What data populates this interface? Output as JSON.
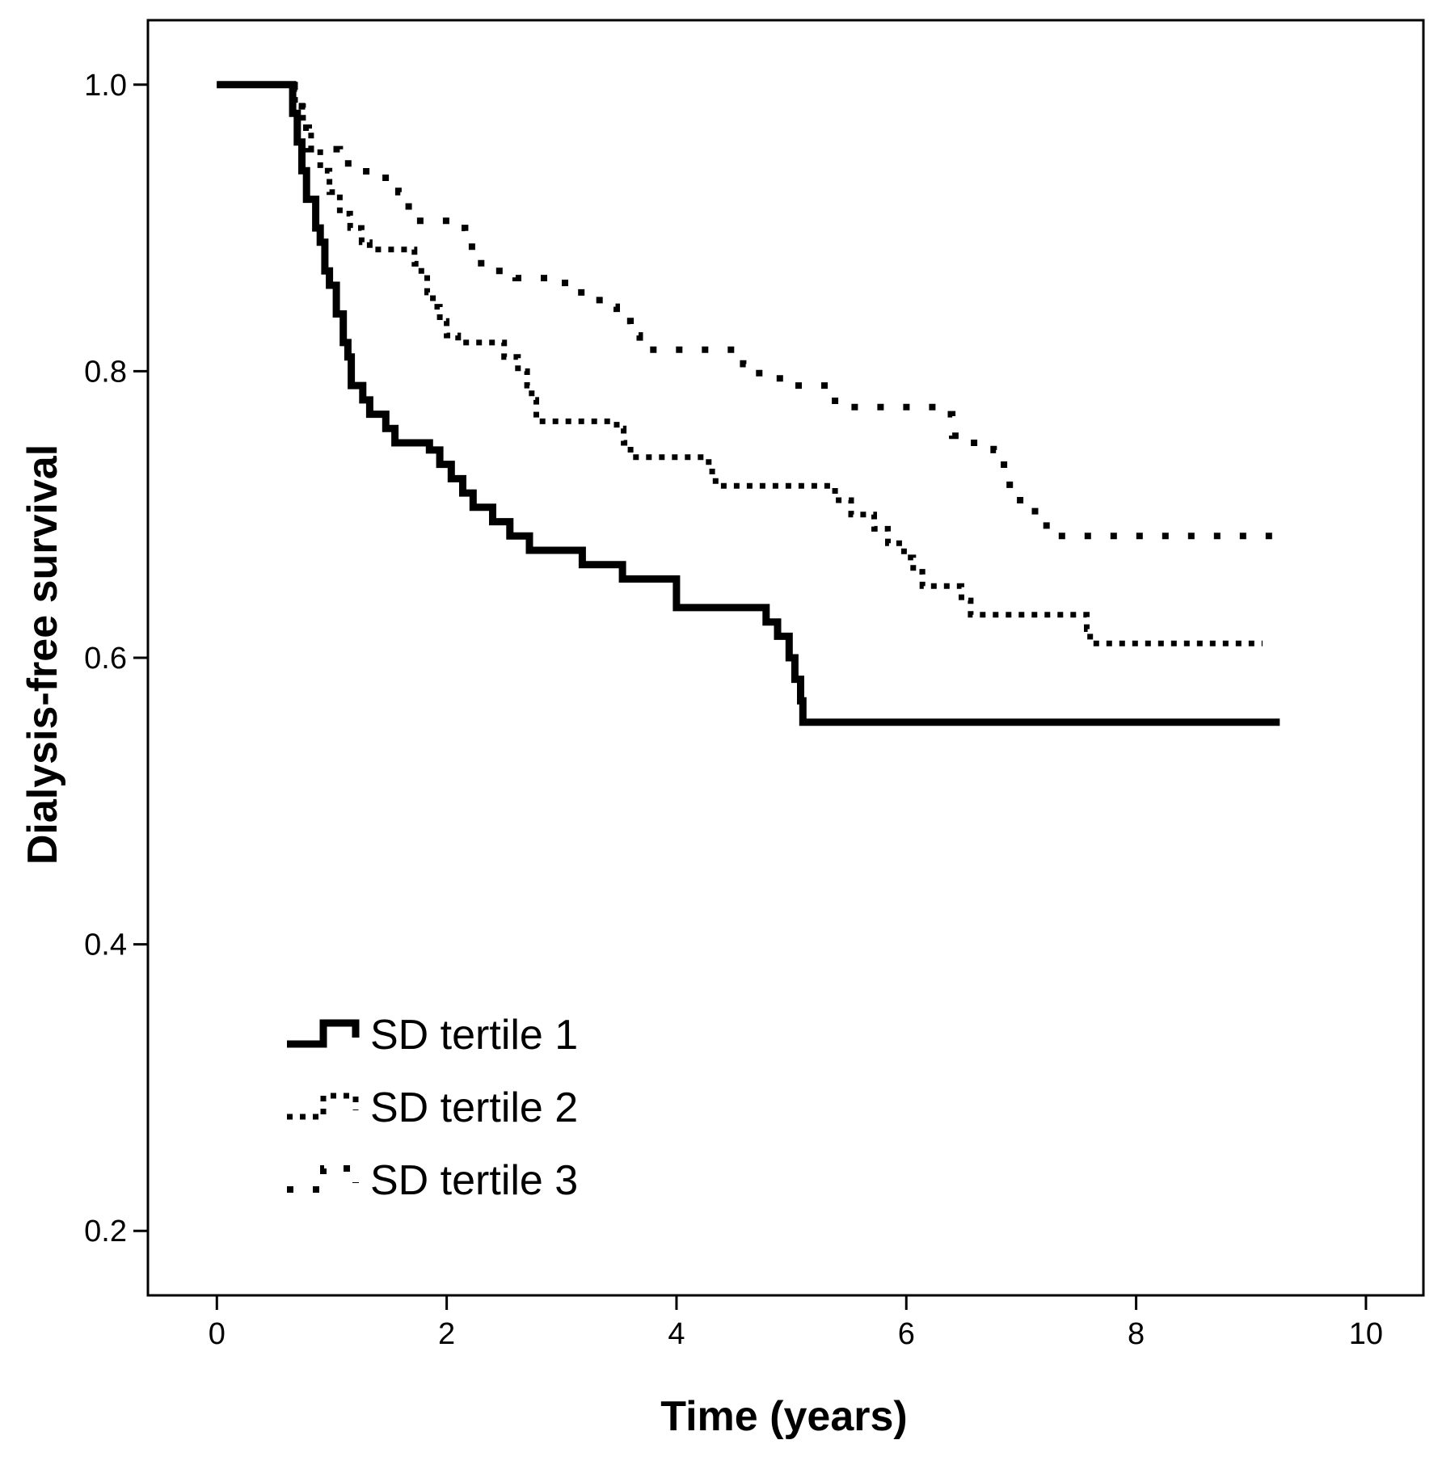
{
  "chart_data": {
    "type": "line",
    "subtype": "kaplan-meier-step",
    "title": "",
    "xlabel": "Time (years)",
    "ylabel": "Dialysis-free survival",
    "xlim": [
      -0.6,
      10.5
    ],
    "ylim": [
      0.155,
      1.045
    ],
    "x_ticks": [
      0,
      2,
      4,
      6,
      8,
      10
    ],
    "y_ticks": [
      0.2,
      0.4,
      0.6,
      0.8,
      1.0
    ],
    "x_tick_labels": [
      "0",
      "2",
      "4",
      "6",
      "8",
      "10"
    ],
    "y_tick_labels": [
      "0.2",
      "0.4",
      "0.6",
      "0.8",
      "1.0"
    ],
    "grid": false,
    "legend_position": "bottom-left",
    "series": [
      {
        "name": "SD tertile 1",
        "style": "solid",
        "points": [
          [
            0,
            1.0
          ],
          [
            0.6,
            1.0
          ],
          [
            0.66,
            0.98
          ],
          [
            0.7,
            0.96
          ],
          [
            0.74,
            0.94
          ],
          [
            0.78,
            0.92
          ],
          [
            0.86,
            0.9
          ],
          [
            0.9,
            0.89
          ],
          [
            0.94,
            0.87
          ],
          [
            0.98,
            0.86
          ],
          [
            1.04,
            0.84
          ],
          [
            1.1,
            0.82
          ],
          [
            1.14,
            0.81
          ],
          [
            1.17,
            0.79
          ],
          [
            1.27,
            0.78
          ],
          [
            1.33,
            0.77
          ],
          [
            1.47,
            0.76
          ],
          [
            1.55,
            0.75
          ],
          [
            1.85,
            0.745
          ],
          [
            1.94,
            0.735
          ],
          [
            2.04,
            0.725
          ],
          [
            2.14,
            0.715
          ],
          [
            2.23,
            0.705
          ],
          [
            2.4,
            0.695
          ],
          [
            2.55,
            0.685
          ],
          [
            2.72,
            0.675
          ],
          [
            3.18,
            0.665
          ],
          [
            3.53,
            0.655
          ],
          [
            4.0,
            0.645
          ],
          [
            4.0,
            0.635
          ],
          [
            4.78,
            0.625
          ],
          [
            4.88,
            0.615
          ],
          [
            4.98,
            0.6
          ],
          [
            5.03,
            0.585
          ],
          [
            5.08,
            0.57
          ],
          [
            5.1,
            0.555
          ],
          [
            9.25,
            0.555
          ]
        ]
      },
      {
        "name": "SD tertile 2",
        "style": "dotted",
        "points": [
          [
            0,
            1.0
          ],
          [
            0.6,
            1.0
          ],
          [
            0.68,
            0.985
          ],
          [
            0.75,
            0.97
          ],
          [
            0.82,
            0.955
          ],
          [
            0.9,
            0.94
          ],
          [
            0.98,
            0.925
          ],
          [
            1.07,
            0.91
          ],
          [
            1.16,
            0.9
          ],
          [
            1.26,
            0.89
          ],
          [
            1.33,
            0.885
          ],
          [
            1.72,
            0.875
          ],
          [
            1.78,
            0.865
          ],
          [
            1.83,
            0.855
          ],
          [
            1.88,
            0.845
          ],
          [
            1.94,
            0.835
          ],
          [
            2.0,
            0.825
          ],
          [
            2.1,
            0.82
          ],
          [
            2.5,
            0.81
          ],
          [
            2.62,
            0.8
          ],
          [
            2.7,
            0.79
          ],
          [
            2.74,
            0.78
          ],
          [
            2.78,
            0.765
          ],
          [
            3.48,
            0.76
          ],
          [
            3.54,
            0.75
          ],
          [
            3.6,
            0.74
          ],
          [
            4.28,
            0.73
          ],
          [
            4.34,
            0.72
          ],
          [
            5.38,
            0.71
          ],
          [
            5.52,
            0.7
          ],
          [
            5.72,
            0.69
          ],
          [
            5.84,
            0.68
          ],
          [
            5.98,
            0.67
          ],
          [
            6.06,
            0.66
          ],
          [
            6.14,
            0.65
          ],
          [
            6.48,
            0.64
          ],
          [
            6.56,
            0.63
          ],
          [
            7.57,
            0.62
          ],
          [
            7.6,
            0.61
          ],
          [
            9.1,
            0.61
          ]
        ]
      },
      {
        "name": "SD tertile 3",
        "style": "loose-dotted",
        "points": [
          [
            0,
            1.0
          ],
          [
            0.6,
            1.0
          ],
          [
            0.67,
            0.985
          ],
          [
            0.74,
            0.97
          ],
          [
            0.8,
            0.955
          ],
          [
            1.07,
            0.945
          ],
          [
            1.3,
            0.935
          ],
          [
            1.58,
            0.925
          ],
          [
            1.63,
            0.915
          ],
          [
            1.7,
            0.905
          ],
          [
            2.07,
            0.9
          ],
          [
            2.16,
            0.89
          ],
          [
            2.22,
            0.88
          ],
          [
            2.3,
            0.87
          ],
          [
            2.6,
            0.865
          ],
          [
            3.03,
            0.855
          ],
          [
            3.33,
            0.845
          ],
          [
            3.48,
            0.835
          ],
          [
            3.6,
            0.825
          ],
          [
            3.68,
            0.815
          ],
          [
            4.43,
            0.815
          ],
          [
            4.58,
            0.805
          ],
          [
            4.72,
            0.795
          ],
          [
            4.94,
            0.79
          ],
          [
            5.38,
            0.775
          ],
          [
            6.34,
            0.77
          ],
          [
            6.4,
            0.755
          ],
          [
            6.56,
            0.75
          ],
          [
            6.76,
            0.745
          ],
          [
            6.85,
            0.73
          ],
          [
            6.9,
            0.71
          ],
          [
            7.12,
            0.7
          ],
          [
            7.22,
            0.685
          ],
          [
            9.25,
            0.685
          ]
        ]
      }
    ]
  }
}
